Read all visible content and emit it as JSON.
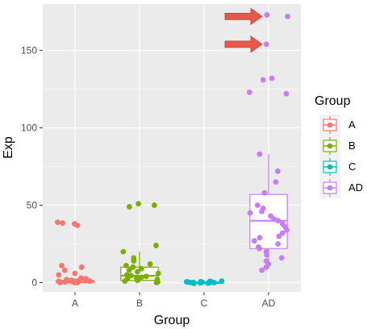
{
  "chart_data": {
    "type": "boxplot",
    "xlabel": "Group",
    "ylabel": "Exp",
    "categories": [
      "A",
      "B",
      "C",
      "AD"
    ],
    "ylim": [
      -6,
      180
    ],
    "yticks": [
      0,
      50,
      100,
      150
    ],
    "yticks_labels": [
      "0",
      "50",
      "100",
      "150"
    ],
    "grid": true,
    "colors": {
      "A": "#F8766D",
      "B": "#7CAE00",
      "C": "#00BFC4",
      "AD": "#C77CFF"
    },
    "boxes": [
      {
        "group": "A",
        "min": 0,
        "q1": 0,
        "median": 0.5,
        "q3": 1.5,
        "max": 3
      },
      {
        "group": "B",
        "min": 0,
        "q1": 1.5,
        "median": 4.5,
        "q3": 10,
        "max": 20
      },
      {
        "group": "C",
        "min": -0.5,
        "q1": -0.2,
        "median": 0,
        "q3": 0.3,
        "max": 0.7
      },
      {
        "group": "AD",
        "min": 9,
        "q1": 22,
        "median": 40,
        "q3": 57,
        "max": 83
      }
    ],
    "points": [
      {
        "group": "A",
        "values": [
          0,
          0,
          0,
          0.3,
          0.5,
          0.6,
          0.8,
          1,
          1.2,
          1.5,
          2,
          2.5,
          3,
          5,
          6,
          8,
          10,
          11,
          37,
          38,
          38.5,
          39
        ]
      },
      {
        "group": "B",
        "values": [
          0,
          0.5,
          1,
          1.5,
          2,
          2.5,
          3,
          3.5,
          4,
          4.5,
          5,
          6,
          7,
          8,
          9,
          10,
          11,
          12,
          14,
          16,
          20,
          24,
          49,
          50,
          51
        ]
      },
      {
        "group": "C",
        "values": [
          -0.5,
          -0.3,
          -0.2,
          0,
          0,
          0.1,
          0.2,
          0.3,
          0.4,
          0.5,
          0.6,
          0.7,
          0.8,
          1
        ]
      },
      {
        "group": "AD",
        "values": [
          8,
          10,
          12,
          14,
          16,
          18,
          20,
          22,
          23,
          25,
          27,
          29,
          30,
          32,
          34,
          36,
          38,
          40,
          41,
          43,
          45,
          46,
          48,
          50,
          58,
          65,
          72,
          83,
          122,
          123,
          131,
          132,
          154,
          155,
          172,
          173
        ]
      }
    ],
    "legend": {
      "title": "Group",
      "position": "right",
      "entries": [
        "A",
        "B",
        "C",
        "AD"
      ]
    },
    "annotations": [
      {
        "type": "arrow",
        "color": "#E8574B",
        "points_to": {
          "group": "AD",
          "y": 172
        }
      },
      {
        "type": "arrow",
        "color": "#E8574B",
        "points_to": {
          "group": "AD",
          "y": 154
        }
      }
    ]
  }
}
